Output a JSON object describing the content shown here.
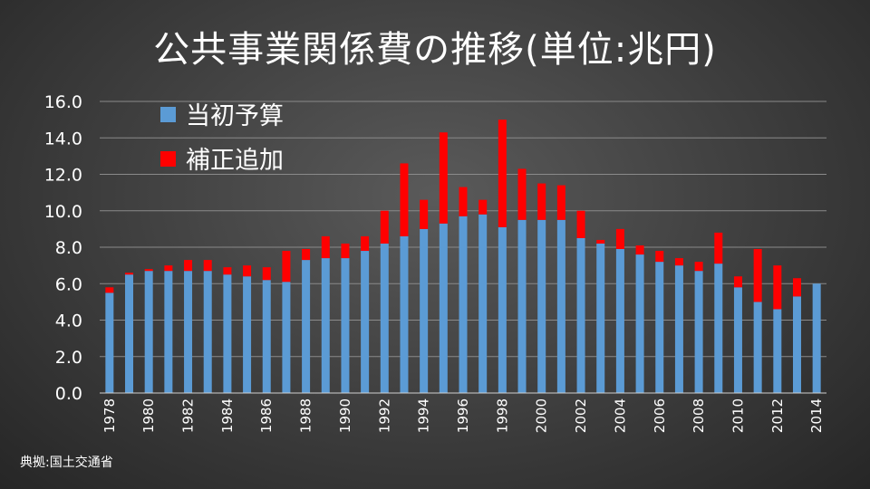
{
  "title": "公共事業関係費の推移(単位:兆円)",
  "source": "典拠:国土交通省",
  "colors": {
    "initial": "#5b9bd5",
    "supplementary": "#ff0000",
    "grid": "#8a8a8a",
    "axis": "#d0d0d0"
  },
  "chart_data": {
    "type": "bar",
    "stacked": true,
    "title": "公共事業関係費の推移(単位:兆円)",
    "xlabel": "",
    "ylabel": "",
    "ylim": [
      0,
      16
    ],
    "yticks": [
      "0.0",
      "2.0",
      "4.0",
      "6.0",
      "8.0",
      "10.0",
      "12.0",
      "14.0",
      "16.0"
    ],
    "grid": true,
    "legend_position": "top-left",
    "categories": [
      "1978",
      "1979",
      "1980",
      "1981",
      "1982",
      "1983",
      "1984",
      "1985",
      "1986",
      "1987",
      "1988",
      "1989",
      "1990",
      "1991",
      "1992",
      "1993",
      "1994",
      "1995",
      "1996",
      "1997",
      "1998",
      "1999",
      "2000",
      "2001",
      "2002",
      "2003",
      "2004",
      "2005",
      "2006",
      "2007",
      "2008",
      "2009",
      "2010",
      "2011",
      "2012",
      "2013",
      "2014"
    ],
    "tick_labels": [
      "1978",
      "1980",
      "1982",
      "1984",
      "1986",
      "1988",
      "1990",
      "1992",
      "1994",
      "1996",
      "1998",
      "2000",
      "2002",
      "2004",
      "2006",
      "2008",
      "2010",
      "2012",
      "2014"
    ],
    "series": [
      {
        "name": "当初予算",
        "color": "#5b9bd5",
        "values": [
          5.5,
          6.5,
          6.7,
          6.7,
          6.7,
          6.7,
          6.5,
          6.4,
          6.2,
          6.1,
          7.3,
          7.4,
          7.4,
          7.8,
          8.2,
          8.6,
          9.0,
          9.3,
          9.7,
          9.8,
          9.1,
          9.5,
          9.5,
          9.5,
          8.5,
          8.2,
          7.9,
          7.6,
          7.2,
          7.0,
          6.7,
          7.1,
          5.8,
          5.0,
          4.6,
          5.3,
          6.0
        ]
      },
      {
        "name": "補正追加",
        "color": "#ff0000",
        "values": [
          0.3,
          0.1,
          0.1,
          0.3,
          0.6,
          0.6,
          0.4,
          0.6,
          0.7,
          1.7,
          0.6,
          1.2,
          0.8,
          0.8,
          1.8,
          4.0,
          1.6,
          5.0,
          1.6,
          0.8,
          5.9,
          2.8,
          2.0,
          1.9,
          1.5,
          0.2,
          1.1,
          0.5,
          0.6,
          0.4,
          0.5,
          1.7,
          0.6,
          2.9,
          2.4,
          1.0,
          0.0
        ]
      }
    ]
  }
}
